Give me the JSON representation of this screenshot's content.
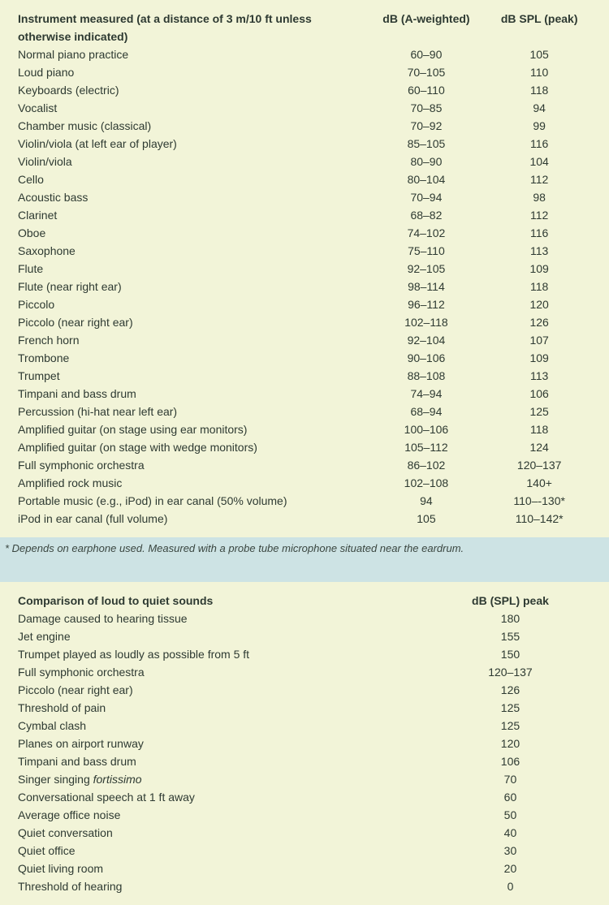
{
  "table1": {
    "headers": {
      "instrument": "Instrument measured (at a distance of 3 m/10 ft unless otherwise indicated)",
      "dba": "dB (A-weighted)",
      "peak": "dB SPL (peak)"
    },
    "rows": [
      {
        "instrument": "Normal piano practice",
        "dba": "60–90",
        "peak": "105"
      },
      {
        "instrument": "Loud piano",
        "dba": "70–105",
        "peak": "110"
      },
      {
        "instrument": "Keyboards (electric)",
        "dba": "60–110",
        "peak": "118"
      },
      {
        "instrument": "Vocalist",
        "dba": "70–85",
        "peak": "94"
      },
      {
        "instrument": "Chamber music (classical)",
        "dba": "70–92",
        "peak": "99"
      },
      {
        "instrument": "Violin/viola (at left ear of player)",
        "dba": "85–105",
        "peak": "116"
      },
      {
        "instrument": "Violin/viola",
        "dba": "80–90",
        "peak": "104"
      },
      {
        "instrument": "Cello",
        "dba": "80–104",
        "peak": "112"
      },
      {
        "instrument": "Acoustic bass",
        "dba": "70–94",
        "peak": "98"
      },
      {
        "instrument": "Clarinet",
        "dba": "68–82",
        "peak": "112"
      },
      {
        "instrument": "Oboe",
        "dba": "74–102",
        "peak": "116"
      },
      {
        "instrument": "Saxophone",
        "dba": "75–110",
        "peak": "113"
      },
      {
        "instrument": "Flute",
        "dba": "92–105",
        "peak": "109"
      },
      {
        "instrument": "Flute (near right ear)",
        "dba": "98–114",
        "peak": "118"
      },
      {
        "instrument": "Piccolo",
        "dba": "96–112",
        "peak": "120"
      },
      {
        "instrument": "Piccolo (near right ear)",
        "dba": "102–118",
        "peak": "126"
      },
      {
        "instrument": "French horn",
        "dba": "92–104",
        "peak": "107"
      },
      {
        "instrument": "Trombone",
        "dba": "90–106",
        "peak": "109"
      },
      {
        "instrument": "Trumpet",
        "dba": "88–108",
        "peak": "113"
      },
      {
        "instrument": "Timpani and bass drum",
        "dba": "74–94",
        "peak": "106"
      },
      {
        "instrument": "Percussion (hi-hat near left ear)",
        "dba": "68–94",
        "peak": "125"
      },
      {
        "instrument": "Amplified guitar (on stage using ear monitors)",
        "dba": "100–106",
        "peak": "118"
      },
      {
        "instrument": "Amplified guitar (on stage with wedge monitors)",
        "dba": "105–112",
        "peak": "124"
      },
      {
        "instrument": "Full symphonic orchestra",
        "dba": "86–102",
        "peak": "120–137"
      },
      {
        "instrument": "Amplified rock music",
        "dba": "102–108",
        "peak": "140+"
      },
      {
        "instrument": "Portable music (e.g., iPod) in ear canal (50% volume)",
        "dba": "94",
        "peak": "110–-130*"
      },
      {
        "instrument": "iPod in ear canal (full volume)",
        "dba": "105",
        "peak": "110–142*"
      }
    ],
    "footnote": "* Depends on earphone used. Measured with a probe tube microphone situated near the eardrum."
  },
  "table2": {
    "headers": {
      "comparison": "Comparison of loud to quiet sounds",
      "peak": "dB (SPL) peak"
    },
    "rows": [
      {
        "item": "Damage caused to hearing tissue",
        "peak": "180"
      },
      {
        "item": "Jet engine",
        "peak": "155"
      },
      {
        "item": "Trumpet played as loudly as possible from 5 ft",
        "peak": "150"
      },
      {
        "item": "Full symphonic orchestra",
        "peak": "120–137"
      },
      {
        "item": "Piccolo (near right ear)",
        "peak": "126"
      },
      {
        "item": "Threshold of pain",
        "peak": "125"
      },
      {
        "item": "Cymbal clash",
        "peak": "125"
      },
      {
        "item": "Planes on airport runway",
        "peak": "120"
      },
      {
        "item": "Timpani and bass drum",
        "peak": "106"
      },
      {
        "item_html": "Singer singing <em class='mus'>fortissimo</em>",
        "peak": "70"
      },
      {
        "item": "Conversational speech at 1 ft away",
        "peak": "60"
      },
      {
        "item": "Average office noise",
        "peak": "50"
      },
      {
        "item": "Quiet conversation",
        "peak": "40"
      },
      {
        "item": "Quiet office",
        "peak": "30"
      },
      {
        "item": "Quiet living room",
        "peak": "20"
      },
      {
        "item": "Threshold of hearing",
        "peak": "0"
      }
    ]
  }
}
